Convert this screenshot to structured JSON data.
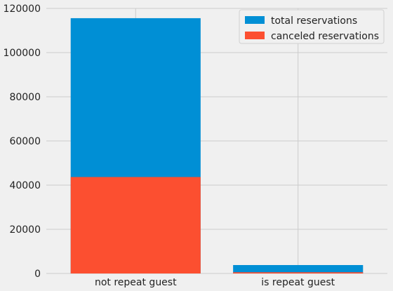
{
  "chart_data": {
    "type": "bar",
    "stacking": "overlay",
    "categories": [
      "not repeat guest",
      "is repeat guest"
    ],
    "series": [
      {
        "name": "total reservations",
        "color": "#008fd5",
        "values": [
          115580,
          3810
        ]
      },
      {
        "name": "canceled reservations",
        "color": "#fc4f30",
        "values": [
          43672,
          552
        ]
      }
    ],
    "ylim": [
      0,
      120000
    ],
    "yticks": [
      0,
      20000,
      40000,
      60000,
      80000,
      100000,
      120000
    ],
    "ytick_labels": [
      "0",
      "20000",
      "40000",
      "60000",
      "80000",
      "100000",
      "120000"
    ],
    "grid": true,
    "legend_position": "top-right",
    "xlabel": "",
    "ylabel": "",
    "title": ""
  },
  "colors": {
    "background": "#f0f0f0",
    "grid": "#cbcbcb",
    "text": "#222222"
  }
}
